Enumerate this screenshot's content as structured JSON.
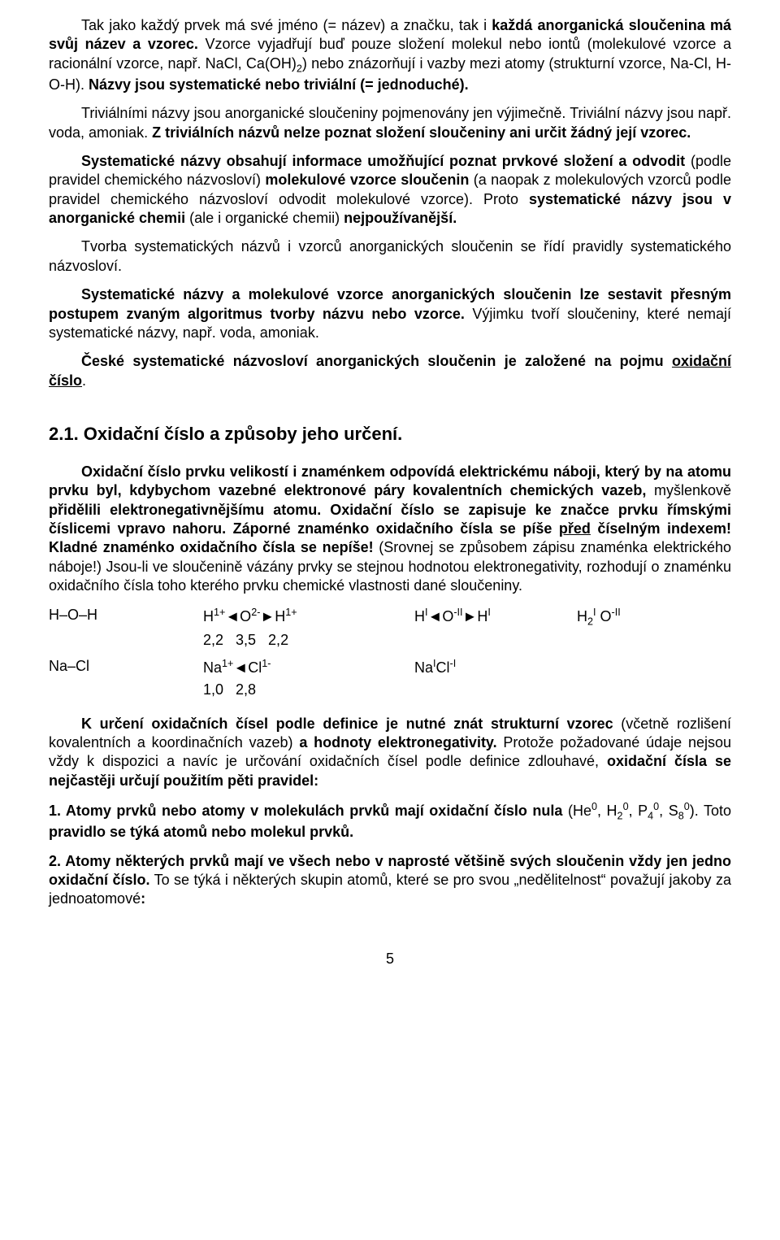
{
  "para1": "Tak jako každý prvek má své jméno (= název) a značku, tak i každá anorganická sloučenina má svůj název a vzorec. Vzorce vyjadřují buď pouze složení molekul nebo iontů (molekulové vzorce a racionální vzorce, např. NaCl, Ca(OH)₂) nebo znázorňují i vazby mezi atomy (strukturní vzorce, Na-Cl, H-O-H). Názvy jsou systematické nebo triviální (= jednoduché).",
  "para2": "Triviálními názvy jsou anorganické sloučeniny pojmenovány jen výjimečně. Triviální názvy jsou např. voda, amoniak. Z triviálních názvů nelze poznat složení sloučeniny ani určit žádný její vzorec.",
  "para3": "Systematické názvy obsahují informace umožňující poznat prvkové složení a odvodit (podle pravidel chemického názvosloví) molekulové vzorce sloučenin (a naopak z molekulových vzorců podle pravidel chemického názvosloví odvodit molekulové vzorce). Proto systematické názvy jsou v anorganické chemii (ale i organické chemii) nejpoužívanější.",
  "para4": "Tvorba systematických názvů i vzorců anorganických sloučenin se řídí pravidly systematického názvosloví.",
  "para5": "Systematické názvy a molekulové vzorce anorganických sloučenin lze sestavit přesným postupem zvaným algoritmus tvorby názvu nebo vzorce. Výjimku tvoří sloučeniny, které nemají systematické názvy, např. voda, amoniak.",
  "para6a": "České systematické názvosloví anorganických sloučenin je založené na pojmu ",
  "para6b": "oxidační číslo",
  "para6c": ".",
  "heading": "2.1. Oxidační číslo a způsoby jeho určení.",
  "para7": "Oxidační číslo prvku velikostí i znaménkem odpovídá elektrickému náboji, který by na atomu prvku byl, kdybychom vazebné elektronové páry kovalentních chemických vazeb, myšlenkově přidělili elektronegativnějšímu atomu. Oxidační číslo se zapisuje ke značce prvku římskými číslicemi vpravo nahoru. Záporné znaménko oxidačního čísla se píše před číselným indexem! Kladné znaménko oxidačního čísla se nepíše! (Srovnej se způsobem zápisu znaménka elektrického náboje!) Jsou-li ve sloučenině vázány prvky se stejnou hodnotou elektronegativity, rozhodují o znaménku oxidačního čísla toho kterého prvku chemické vlastnosti dané sloučeniny.",
  "formula": {
    "row1": {
      "c1": "H–O–H",
      "c2": "H¹⁺◄O²⁻►H¹⁺",
      "c3": "Hᴵ◄O⁻ᴵᴵ►Hᴵ",
      "c4": "H₂ᴵ O⁻ᴵᴵ"
    },
    "en1": "2,2   3,5   2,2",
    "row2": {
      "c1": "Na–Cl",
      "c2": "Na¹⁺◄Cl¹⁻",
      "c3": "NaᴵCl⁻ᴵ",
      "c4": ""
    },
    "en2": "1,0   2,8"
  },
  "para8": "K určení oxidačních čísel podle definice je nutné znát strukturní vzorec (včetně rozlišení kovalentních a koordinačních vazeb) a hodnoty elektronegativity. Protože požadované údaje nejsou vždy k dispozici a navíc je určování oxidačních čísel podle definice zdlouhavé, oxidační čísla se nejčastěji určují použitím pěti pravidel:",
  "rule1": "1. Atomy prvků nebo atomy v molekulách prvků mají oxidační číslo nula (He⁰, H₂⁰, P₄⁰, S₈⁰). Toto pravidlo se týká atomů nebo molekul prvků.",
  "rule2": "2. Atomy některých prvků mají ve všech nebo v naprosté většině svých sloučenin vždy jen jedno oxidační číslo. To se týká i některých skupin atomů, které se pro svou „nedělitelnost“ považují jakoby za jednoatomové:",
  "page_number": "5"
}
